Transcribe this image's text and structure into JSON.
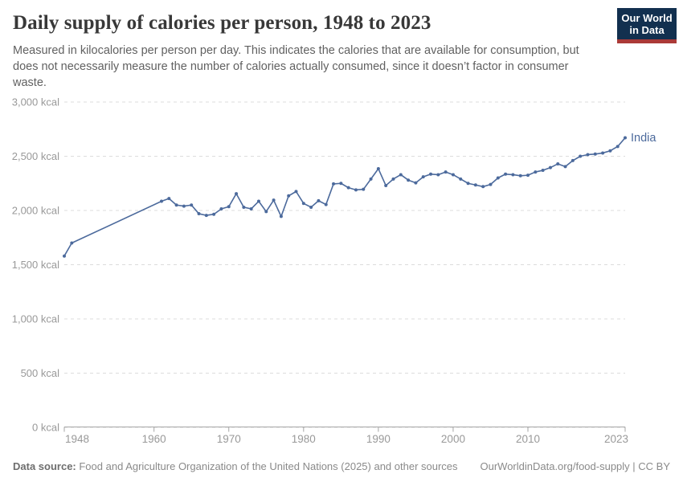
{
  "header": {
    "title": "Daily supply of calories per person, 1948 to 2023",
    "subtitle": "Measured in kilocalories per person per day. This indicates the calories that are available for consumption, but does not necessarily measure the number of calories actually consumed, since it doesn’t factor in consumer waste.",
    "logo": {
      "line1": "Our World",
      "line2": "in Data"
    }
  },
  "footer": {
    "source_label": "Data source:",
    "source_text": " Food and Agriculture Organization of the United Nations (2025) and other sources",
    "link_text": "OurWorldinData.org/food-supply | CC BY"
  },
  "colors": {
    "line": "#4C6A9C",
    "entity_label": "#4C6A9C",
    "grid": "#dcdcdc",
    "axis": "#a5a5a5",
    "tick_label": "#999999",
    "logo_bg": "#12304f",
    "logo_red": "#ab3a38"
  },
  "chart_data": {
    "type": "line",
    "title": "Daily supply of calories per person, 1948 to 2023",
    "unit": "kcal",
    "xlabel": "",
    "ylabel": "",
    "x_range": [
      1948,
      2023
    ],
    "ylim": [
      0,
      3000
    ],
    "grid": true,
    "legend_position": "end-of-line",
    "y_ticks": [
      {
        "value": 0,
        "label": "0 kcal"
      },
      {
        "value": 500,
        "label": "500 kcal"
      },
      {
        "value": 1000,
        "label": "1,000 kcal"
      },
      {
        "value": 1500,
        "label": "1,500 kcal"
      },
      {
        "value": 2000,
        "label": "2,000 kcal"
      },
      {
        "value": 2500,
        "label": "2,500 kcal"
      },
      {
        "value": 3000,
        "label": "3,000 kcal"
      }
    ],
    "x_ticks": [
      {
        "value": 1948,
        "label": "1948"
      },
      {
        "value": 1960,
        "label": "1960"
      },
      {
        "value": 1970,
        "label": "1970"
      },
      {
        "value": 1980,
        "label": "1980"
      },
      {
        "value": 1990,
        "label": "1990"
      },
      {
        "value": 2000,
        "label": "2000"
      },
      {
        "value": 2010,
        "label": "2010"
      },
      {
        "value": 2023,
        "label": "2023"
      }
    ],
    "series": [
      {
        "name": "India",
        "color": "#4C6A9C",
        "points": [
          [
            1948,
            1580
          ],
          [
            1949,
            1700
          ],
          [
            1961,
            2085
          ],
          [
            1962,
            2110
          ],
          [
            1963,
            2050
          ],
          [
            1964,
            2040
          ],
          [
            1965,
            2050
          ],
          [
            1966,
            1970
          ],
          [
            1967,
            1955
          ],
          [
            1968,
            1965
          ],
          [
            1969,
            2015
          ],
          [
            1970,
            2035
          ],
          [
            1971,
            2155
          ],
          [
            1972,
            2030
          ],
          [
            1973,
            2015
          ],
          [
            1974,
            2085
          ],
          [
            1975,
            1990
          ],
          [
            1976,
            2095
          ],
          [
            1977,
            1945
          ],
          [
            1978,
            2135
          ],
          [
            1979,
            2175
          ],
          [
            1980,
            2065
          ],
          [
            1981,
            2030
          ],
          [
            1982,
            2090
          ],
          [
            1983,
            2055
          ],
          [
            1984,
            2245
          ],
          [
            1985,
            2250
          ],
          [
            1986,
            2210
          ],
          [
            1987,
            2190
          ],
          [
            1988,
            2195
          ],
          [
            1989,
            2290
          ],
          [
            1990,
            2385
          ],
          [
            1991,
            2230
          ],
          [
            1992,
            2290
          ],
          [
            1993,
            2330
          ],
          [
            1994,
            2280
          ],
          [
            1995,
            2255
          ],
          [
            1996,
            2310
          ],
          [
            1997,
            2335
          ],
          [
            1998,
            2330
          ],
          [
            1999,
            2355
          ],
          [
            2000,
            2330
          ],
          [
            2001,
            2290
          ],
          [
            2002,
            2250
          ],
          [
            2003,
            2235
          ],
          [
            2004,
            2220
          ],
          [
            2005,
            2240
          ],
          [
            2006,
            2300
          ],
          [
            2007,
            2335
          ],
          [
            2008,
            2330
          ],
          [
            2009,
            2320
          ],
          [
            2010,
            2325
          ],
          [
            2011,
            2355
          ],
          [
            2012,
            2370
          ],
          [
            2013,
            2395
          ],
          [
            2014,
            2430
          ],
          [
            2015,
            2405
          ],
          [
            2016,
            2460
          ],
          [
            2017,
            2500
          ],
          [
            2018,
            2515
          ],
          [
            2019,
            2520
          ],
          [
            2020,
            2530
          ],
          [
            2021,
            2550
          ],
          [
            2022,
            2590
          ],
          [
            2023,
            2670
          ]
        ]
      }
    ]
  }
}
